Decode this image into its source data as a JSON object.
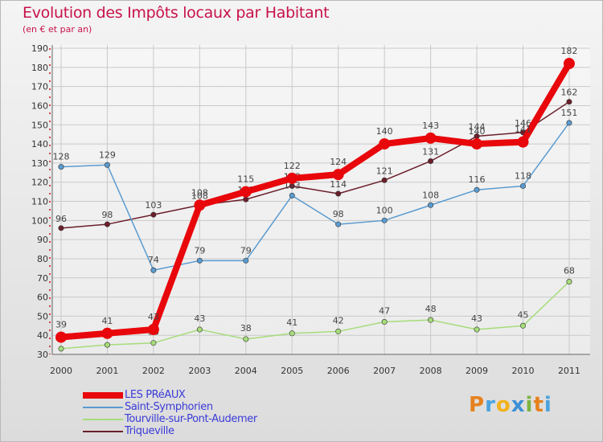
{
  "chart_data": {
    "type": "line",
    "title": "Evolution des Impôts locaux par Habitant",
    "subtitle": "(en € et par an)",
    "x": [
      "2000",
      "2001",
      "2002",
      "2003",
      "2004",
      "2005",
      "2006",
      "2007",
      "2008",
      "2009",
      "2010",
      "2011"
    ],
    "ylim": [
      30,
      190
    ],
    "yticks": [
      30,
      40,
      50,
      60,
      70,
      80,
      90,
      100,
      110,
      120,
      130,
      140,
      150,
      160,
      170,
      180,
      190
    ],
    "grid": true,
    "series": [
      {
        "name": "Triqueville",
        "color": "#6b1f2a",
        "values": [
          96,
          98,
          103,
          108,
          111,
          118,
          114,
          121,
          131,
          144,
          146,
          162
        ]
      },
      {
        "name": "Tourville-sur-Pont-Audemer",
        "color": "#a6dc7a",
        "values": [
          33,
          35,
          36,
          43,
          38,
          41,
          42,
          47,
          48,
          43,
          45,
          68
        ]
      },
      {
        "name": "Saint-Symphorien",
        "color": "#5a9bd0",
        "values": [
          128,
          129,
          74,
          79,
          79,
          113,
          98,
          100,
          108,
          116,
          118,
          151
        ]
      },
      {
        "name": "LES PRéAUX",
        "color": "#e8070b",
        "values": [
          39,
          41,
          43,
          108,
          115,
          122,
          124,
          140,
          143,
          140,
          141,
          182
        ]
      }
    ],
    "legend": [
      "LES PRéAUX",
      "Saint-Symphorien",
      "Tourville-sur-Pont-Audemer",
      "Triqueville"
    ],
    "legend_colors": [
      "#e8070b",
      "#5a9bd0",
      "#a6dc7a",
      "#6b1f2a"
    ]
  },
  "logo_text": "Proxiti"
}
